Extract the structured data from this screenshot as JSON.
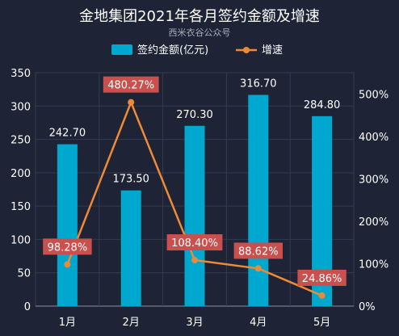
{
  "colors": {
    "background": "#1e2436",
    "grid": "#333b4f",
    "bar": "#00a8d0",
    "line": "#ed8a37",
    "label_box": "#c9504d",
    "text": "#ffffff",
    "subtitle": "#a8adb8"
  },
  "chart_data": {
    "type": "bar",
    "title": "金地集团2021年各月签约金额及增速",
    "subtitle": "西米衣谷公众号",
    "categories": [
      "1月",
      "2月",
      "3月",
      "4月",
      "5月"
    ],
    "series": [
      {
        "name": "签约金额(亿元)",
        "type": "bar",
        "axis": "left",
        "values": [
          242.7,
          173.5,
          270.3,
          316.7,
          284.8
        ],
        "labels": [
          "242.70",
          "173.50",
          "270.30",
          "316.70",
          "284.80"
        ]
      },
      {
        "name": "增速",
        "type": "line",
        "axis": "right",
        "values": [
          98.28,
          480.27,
          108.4,
          88.62,
          24.86
        ],
        "labels": [
          "98.28%",
          "480.27%",
          "108.40%",
          "88.62%",
          "24.86%"
        ]
      }
    ],
    "y_left": {
      "min": 0,
      "max": 350,
      "step": 50,
      "ticks": [
        "0",
        "50",
        "100",
        "150",
        "200",
        "250",
        "300",
        "350"
      ]
    },
    "y_right": {
      "min": 0,
      "max": 550,
      "step": 100,
      "ticks": [
        "0%",
        "100%",
        "200%",
        "300%",
        "400%",
        "500%"
      ]
    },
    "grid": true,
    "legend_position": "top"
  }
}
